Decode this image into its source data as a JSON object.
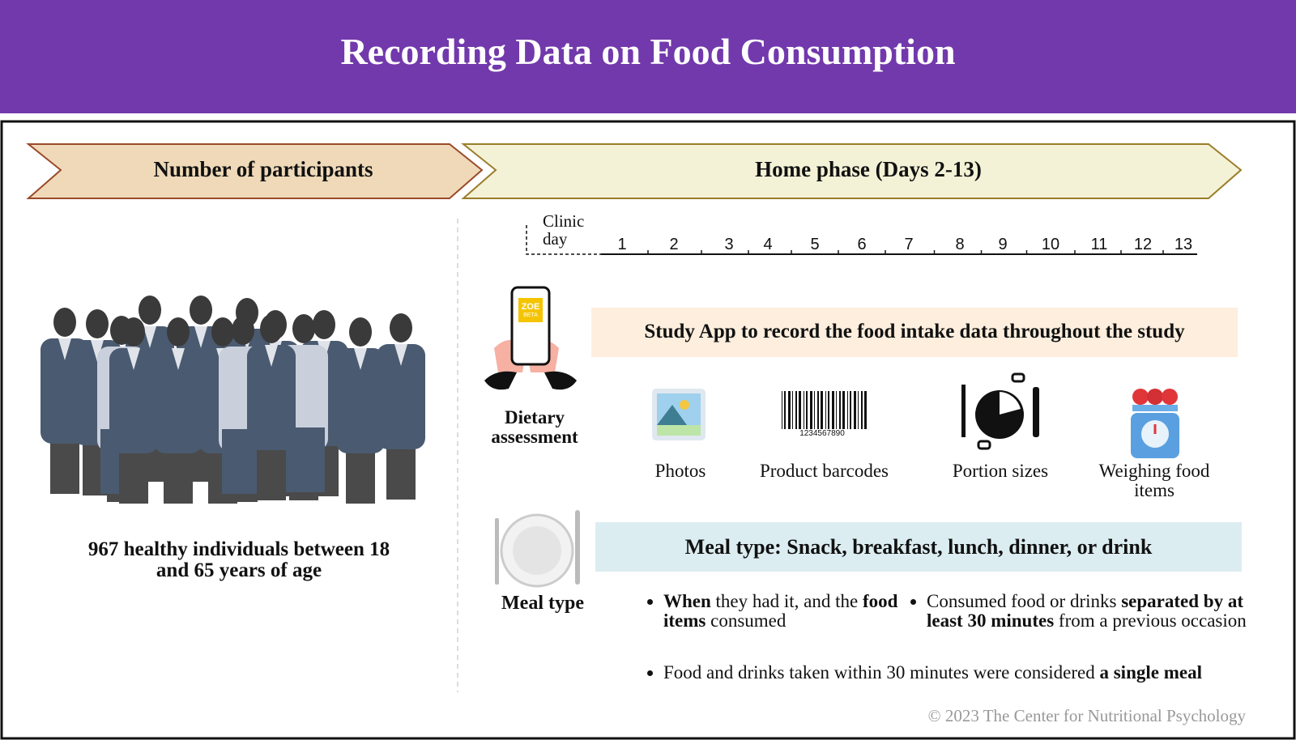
{
  "header": {
    "title": "Recording Data on Food Consumption"
  },
  "sections": {
    "participants": "Number of participants",
    "home_phase": "Home phase (Days 2-13)"
  },
  "participants": {
    "description": "967 healthy individuals between 18 and 65 years of age"
  },
  "timeline": {
    "clinic_day": "Clinic day",
    "days": [
      "1",
      "2",
      "3",
      "4",
      "5",
      "6",
      "7",
      "8",
      "9",
      "10",
      "11",
      "12",
      "13"
    ]
  },
  "dietary_assessment": {
    "icon_label": "Dietary assessment",
    "app_badge": [
      "ZOE",
      "BETA"
    ],
    "app_description": "Study App to record the food intake data throughout the study",
    "methods": [
      "Photos",
      "Product barcodes",
      "Portion sizes",
      "Weighing food items"
    ],
    "barcode_number": "1234567890"
  },
  "meal_type": {
    "icon_label": "Meal type",
    "description": "Meal type: Snack, breakfast, lunch, dinner, or drink",
    "bullets": [
      [
        "When",
        " they had it, and the ",
        "food items",
        " consumed"
      ],
      [
        "Consumed food or drinks ",
        "separated by at least 30 minutes",
        " from a previous occasion"
      ],
      [
        "Food and drinks taken within 30 minutes were considered ",
        "a single meal"
      ]
    ]
  },
  "footer": {
    "copyright": "© 2023 The Center for Nutritional Psychology"
  }
}
